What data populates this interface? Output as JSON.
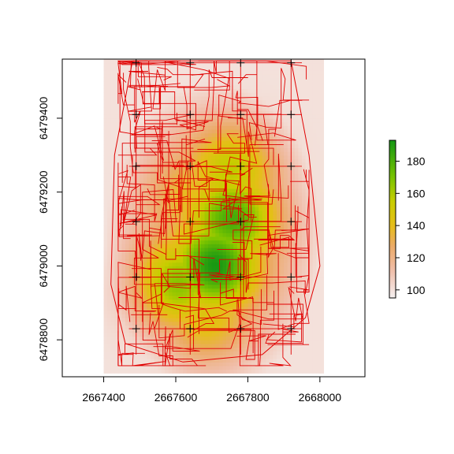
{
  "chart_data": {
    "type": "heatmap",
    "title": "",
    "xlabel": "",
    "ylabel": "",
    "xlim": [
      2667285,
      2668125
    ],
    "ylim": [
      2667285,
      2668125
    ],
    "ylim_data": [
      6478700,
      6479560
    ],
    "x_ticks": [
      2667400,
      2667600,
      2667800,
      2668000
    ],
    "y_ticks": [
      6478800,
      6479000,
      6479200,
      6479400
    ],
    "x_tick_labels": [
      "2667400",
      "2667600",
      "2667800",
      "2668000"
    ],
    "y_tick_labels": [
      "6478800",
      "6479000",
      "6479200",
      "6479400"
    ],
    "raster_extent": {
      "xmin": 2667400,
      "xmax": 2668010,
      "ymin": 6478710,
      "ymax": 6479560
    },
    "value_range": [
      95,
      193
    ],
    "hotspots": [
      {
        "x": 2667710,
        "y": 6479000,
        "value": 190
      },
      {
        "x": 2667760,
        "y": 6479130,
        "value": 180
      },
      {
        "x": 2667600,
        "y": 6478950,
        "value": 170
      },
      {
        "x": 2667760,
        "y": 6479270,
        "value": 160
      },
      {
        "x": 2667640,
        "y": 6479200,
        "value": 140
      },
      {
        "x": 2667680,
        "y": 6478850,
        "value": 150
      },
      {
        "x": 2667560,
        "y": 6478930,
        "value": 150
      }
    ],
    "sample_points": [
      [
        2667490,
        6479550
      ],
      [
        2667640,
        6479550
      ],
      [
        2667780,
        6479550
      ],
      [
        2667920,
        6479550
      ],
      [
        2667490,
        6479410
      ],
      [
        2667640,
        6479410
      ],
      [
        2667780,
        6479410
      ],
      [
        2667920,
        6479410
      ],
      [
        2667490,
        6479270
      ],
      [
        2667640,
        6479270
      ],
      [
        2667780,
        6479270
      ],
      [
        2667920,
        6479270
      ],
      [
        2667490,
        6479120
      ],
      [
        2667640,
        6479120
      ],
      [
        2667780,
        6479120
      ],
      [
        2667920,
        6479120
      ],
      [
        2667490,
        6478970
      ],
      [
        2667640,
        6478970
      ],
      [
        2667780,
        6478970
      ],
      [
        2667920,
        6478970
      ],
      [
        2667490,
        6478830
      ],
      [
        2667640,
        6478830
      ],
      [
        2667780,
        6478830
      ],
      [
        2667920,
        6478830
      ]
    ],
    "grid": false,
    "legend": {
      "placement": "right",
      "ticks": [
        100,
        120,
        140,
        160,
        180
      ],
      "tick_labels": [
        "100",
        "120",
        "140",
        "160",
        "180"
      ],
      "range": [
        95,
        193
      ]
    },
    "colors": {
      "low": "#f5f0f0",
      "mid_low": "#f0b8a0",
      "mid": "#e8c020",
      "high": "#1c9a1c",
      "lines": "#e00000",
      "points": "#000000"
    }
  }
}
